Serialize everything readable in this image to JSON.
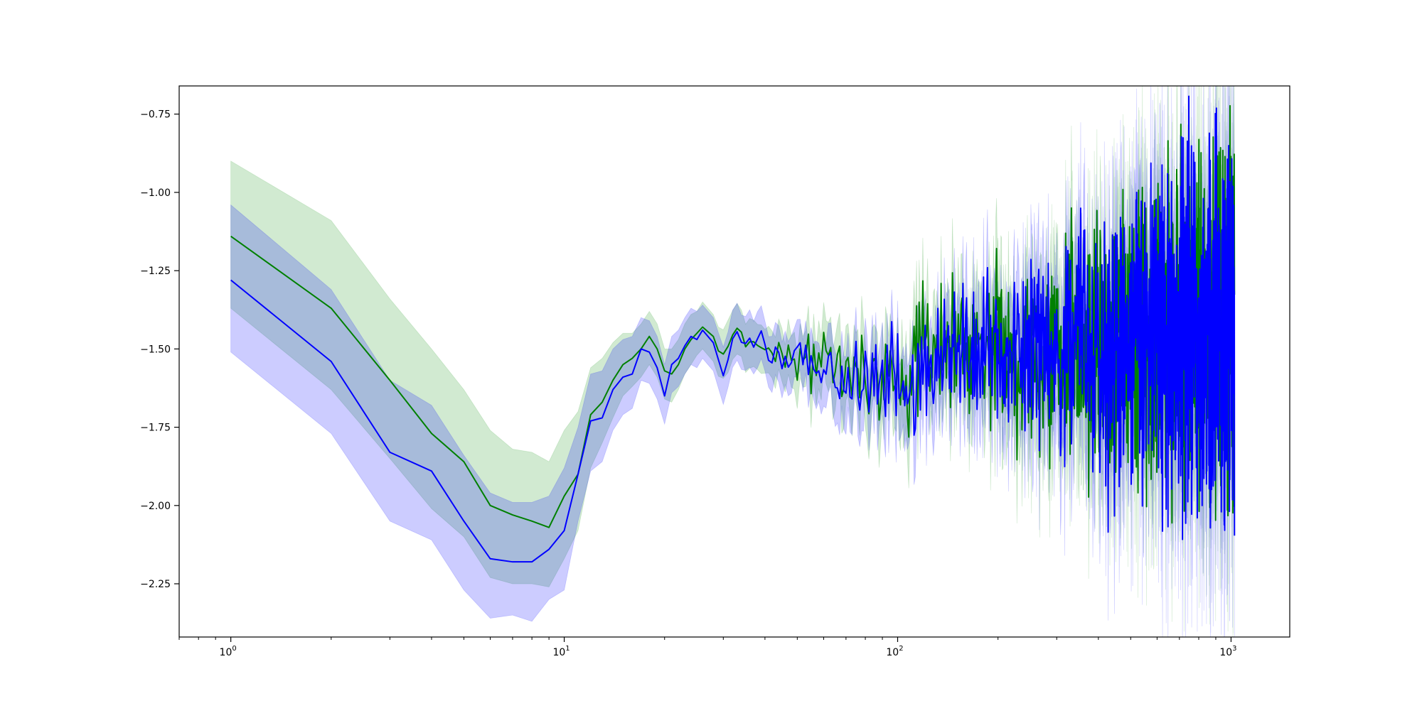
{
  "chart_data": {
    "type": "line",
    "title": "",
    "xlabel": "",
    "ylabel": "",
    "xscale": "log",
    "xlim": [
      0.7,
      1500
    ],
    "ylim": [
      -2.42,
      -0.66
    ],
    "grid": false,
    "legend": "none",
    "x_ticks": [
      {
        "value": 1,
        "label": "10",
        "exp": "0"
      },
      {
        "value": 10,
        "label": "10",
        "exp": "1"
      },
      {
        "value": 100,
        "label": "10",
        "exp": "2"
      },
      {
        "value": 1000,
        "label": "10",
        "exp": "3"
      }
    ],
    "y_ticks": [
      {
        "value": -0.75,
        "label": "−0.75"
      },
      {
        "value": -1.0,
        "label": "−1.00"
      },
      {
        "value": -1.25,
        "label": "−1.25"
      },
      {
        "value": -1.5,
        "label": "−1.50"
      },
      {
        "value": -1.75,
        "label": "−1.75"
      },
      {
        "value": -2.0,
        "label": "−2.00"
      },
      {
        "value": -2.25,
        "label": "−2.25"
      }
    ],
    "series": [
      {
        "color": "#008000",
        "band_color": "#2ca02c",
        "band_opacity": 0.22,
        "noise_seed": 7,
        "x": [
          1,
          2,
          3,
          4,
          5,
          6,
          7,
          8,
          9,
          10,
          11,
          12,
          13,
          14,
          15,
          16,
          17,
          18,
          19,
          20,
          21,
          22,
          23,
          24,
          25,
          26,
          28,
          30,
          32,
          35,
          40,
          50,
          60,
          80,
          100,
          130,
          150,
          200,
          300,
          400,
          500,
          700,
          1000
        ],
        "y": [
          -1.14,
          -1.37,
          -1.6,
          -1.77,
          -1.86,
          -2.0,
          -2.03,
          -2.05,
          -2.07,
          -1.97,
          -1.9,
          -1.71,
          -1.67,
          -1.6,
          -1.55,
          -1.53,
          -1.5,
          -1.46,
          -1.5,
          -1.57,
          -1.58,
          -1.55,
          -1.5,
          -1.47,
          -1.45,
          -1.43,
          -1.46,
          -1.55,
          -1.47,
          -1.44,
          -1.5,
          -1.52,
          -1.55,
          -1.58,
          -1.6,
          -1.5,
          -1.46,
          -1.5,
          -1.5,
          -1.48,
          -1.45,
          -1.43,
          -1.42
        ],
        "upper": [
          -0.9,
          -1.09,
          -1.34,
          -1.5,
          -1.63,
          -1.76,
          -1.82,
          -1.83,
          -1.86,
          -1.76,
          -1.7,
          -1.56,
          -1.53,
          -1.48,
          -1.45,
          -1.45,
          -1.42,
          -1.38,
          -1.42,
          -1.5,
          -1.5,
          -1.47,
          -1.42,
          -1.39,
          -1.38,
          -1.35,
          -1.39,
          -1.47,
          -1.39,
          -1.37,
          -1.43,
          -1.44,
          -1.45,
          -1.46,
          -1.47,
          -1.36,
          -1.3,
          -1.32,
          -1.28,
          -1.22,
          -1.16,
          -1.1,
          -1.04
        ],
        "lower": [
          -1.37,
          -1.63,
          -1.85,
          -2.01,
          -2.1,
          -2.23,
          -2.25,
          -2.25,
          -2.26,
          -2.17,
          -2.08,
          -1.88,
          -1.8,
          -1.72,
          -1.65,
          -1.62,
          -1.59,
          -1.55,
          -1.59,
          -1.66,
          -1.67,
          -1.63,
          -1.58,
          -1.55,
          -1.52,
          -1.5,
          -1.54,
          -1.63,
          -1.55,
          -1.52,
          -1.58,
          -1.61,
          -1.66,
          -1.71,
          -1.75,
          -1.65,
          -1.62,
          -1.7,
          -1.74,
          -1.76,
          -1.76,
          -1.77,
          -1.8
        ],
        "noise": [
          0,
          0,
          0,
          0,
          0,
          0,
          0,
          0,
          0,
          0,
          0,
          0,
          0,
          0,
          0,
          0,
          0,
          0,
          0,
          0,
          0,
          0,
          0,
          0,
          0,
          0,
          0,
          0.02,
          0.02,
          0.02,
          0.03,
          0.04,
          0.05,
          0.07,
          0.08,
          0.1,
          0.11,
          0.13,
          0.16,
          0.2,
          0.23,
          0.26,
          0.28
        ]
      },
      {
        "color": "#0000ff",
        "band_color": "#0000ff",
        "band_opacity": 0.2,
        "noise_seed": 19,
        "x": [
          1,
          2,
          3,
          4,
          5,
          6,
          7,
          8,
          9,
          10,
          11,
          12,
          13,
          14,
          15,
          16,
          17,
          18,
          19,
          20,
          21,
          22,
          23,
          24,
          25,
          26,
          28,
          30,
          32,
          35,
          40,
          50,
          60,
          80,
          100,
          130,
          150,
          200,
          300,
          400,
          500,
          700,
          1000
        ],
        "y": [
          -1.28,
          -1.54,
          -1.83,
          -1.89,
          -2.05,
          -2.17,
          -2.18,
          -2.18,
          -2.14,
          -2.08,
          -1.9,
          -1.73,
          -1.72,
          -1.63,
          -1.59,
          -1.58,
          -1.5,
          -1.51,
          -1.56,
          -1.65,
          -1.55,
          -1.53,
          -1.49,
          -1.46,
          -1.47,
          -1.44,
          -1.48,
          -1.58,
          -1.49,
          -1.47,
          -1.5,
          -1.53,
          -1.57,
          -1.6,
          -1.62,
          -1.53,
          -1.5,
          -1.52,
          -1.52,
          -1.5,
          -1.47,
          -1.44,
          -1.43
        ],
        "upper": [
          -1.04,
          -1.31,
          -1.6,
          -1.68,
          -1.84,
          -1.96,
          -1.99,
          -1.99,
          -1.97,
          -1.88,
          -1.75,
          -1.58,
          -1.57,
          -1.5,
          -1.47,
          -1.46,
          -1.4,
          -1.41,
          -1.46,
          -1.55,
          -1.46,
          -1.44,
          -1.4,
          -1.37,
          -1.38,
          -1.36,
          -1.4,
          -1.49,
          -1.4,
          -1.38,
          -1.42,
          -1.45,
          -1.47,
          -1.49,
          -1.5,
          -1.4,
          -1.34,
          -1.35,
          -1.3,
          -1.24,
          -1.18,
          -1.12,
          -1.06
        ],
        "lower": [
          -1.51,
          -1.77,
          -2.05,
          -2.11,
          -2.27,
          -2.36,
          -2.35,
          -2.37,
          -2.3,
          -2.27,
          -2.05,
          -1.89,
          -1.86,
          -1.76,
          -1.71,
          -1.69,
          -1.6,
          -1.61,
          -1.66,
          -1.74,
          -1.64,
          -1.62,
          -1.58,
          -1.55,
          -1.56,
          -1.53,
          -1.57,
          -1.67,
          -1.58,
          -1.56,
          -1.59,
          -1.62,
          -1.68,
          -1.73,
          -1.77,
          -1.68,
          -1.66,
          -1.72,
          -1.77,
          -1.79,
          -1.8,
          -1.81,
          -1.84
        ],
        "noise": [
          0,
          0,
          0,
          0,
          0,
          0,
          0,
          0,
          0,
          0,
          0,
          0,
          0,
          0,
          0,
          0,
          0,
          0,
          0,
          0,
          0,
          0,
          0,
          0,
          0,
          0,
          0,
          0.02,
          0.02,
          0.02,
          0.03,
          0.04,
          0.05,
          0.07,
          0.08,
          0.1,
          0.11,
          0.13,
          0.16,
          0.2,
          0.23,
          0.26,
          0.3
        ]
      }
    ]
  }
}
